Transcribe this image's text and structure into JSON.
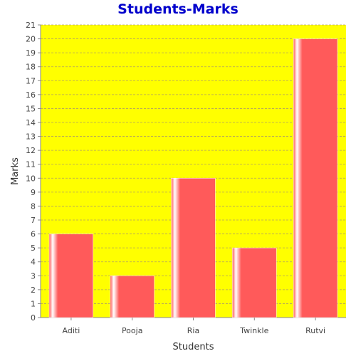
{
  "colors": {
    "title": "#0000cc",
    "plot_background": "#ffff00",
    "bar": "#ff5a5a",
    "bar_highlight": "#ffffff",
    "grid": "#b0a060"
  },
  "chart_data": {
    "type": "bar",
    "title": "Students-Marks",
    "xlabel": "Students",
    "ylabel": "Marks",
    "categories": [
      "Aditi",
      "Pooja",
      "Ria",
      "Twinkle",
      "Rutvi"
    ],
    "values": [
      6,
      3,
      10,
      5,
      20
    ],
    "ylim": [
      0,
      21
    ],
    "yticks": [
      "0",
      "1",
      "2",
      "3",
      "4",
      "5",
      "6",
      "7",
      "8",
      "9",
      "10",
      "11",
      "12",
      "13",
      "14",
      "15",
      "16",
      "17",
      "18",
      "19",
      "20",
      "21"
    ],
    "grid": true,
    "legend": "none"
  }
}
